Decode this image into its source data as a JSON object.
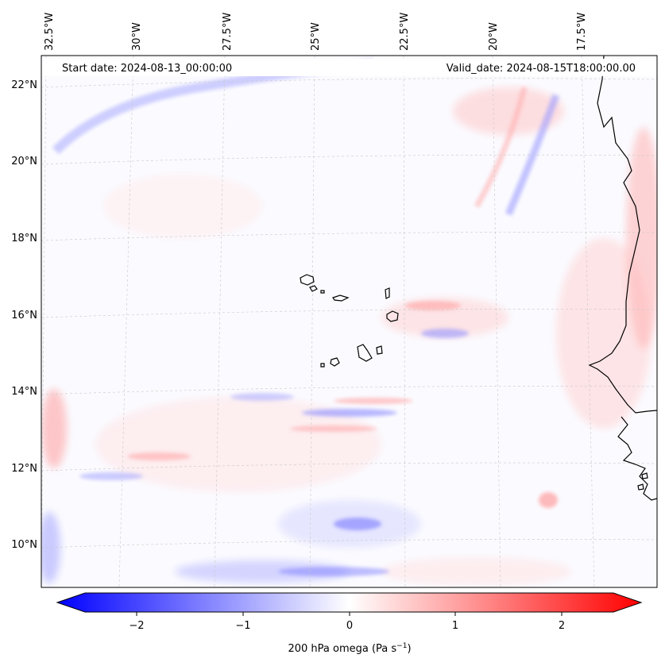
{
  "map": {
    "field": "200 hPa omega",
    "start_date_text": "Start date: 2024-08-13_00:00:00",
    "valid_date_text": "Valid_date: 2024-08-15T18:00:00.00",
    "lon_ticks": [
      "32.5°W",
      "30°W",
      "27.5°W",
      "25°W",
      "22.5°W",
      "20°W",
      "17.5°W"
    ],
    "lat_ticks": [
      "22°N",
      "20°N",
      "18°N",
      "16°N",
      "14°N",
      "12°N",
      "10°N"
    ],
    "coastline_color": "#000000",
    "gridline_color": "#c8c8c8"
  },
  "colorbar": {
    "label_prefix": "200 hPa omega (Pa s",
    "label_exp": "−1",
    "label_suffix": ")",
    "ticks": [
      "−2",
      "−1",
      "0",
      "1",
      "2"
    ],
    "range": [
      -2.75,
      2.75
    ],
    "colormap": "bwr",
    "low_color": "#0000ff",
    "mid_color": "#ffffff",
    "high_color": "#ff0000"
  }
}
